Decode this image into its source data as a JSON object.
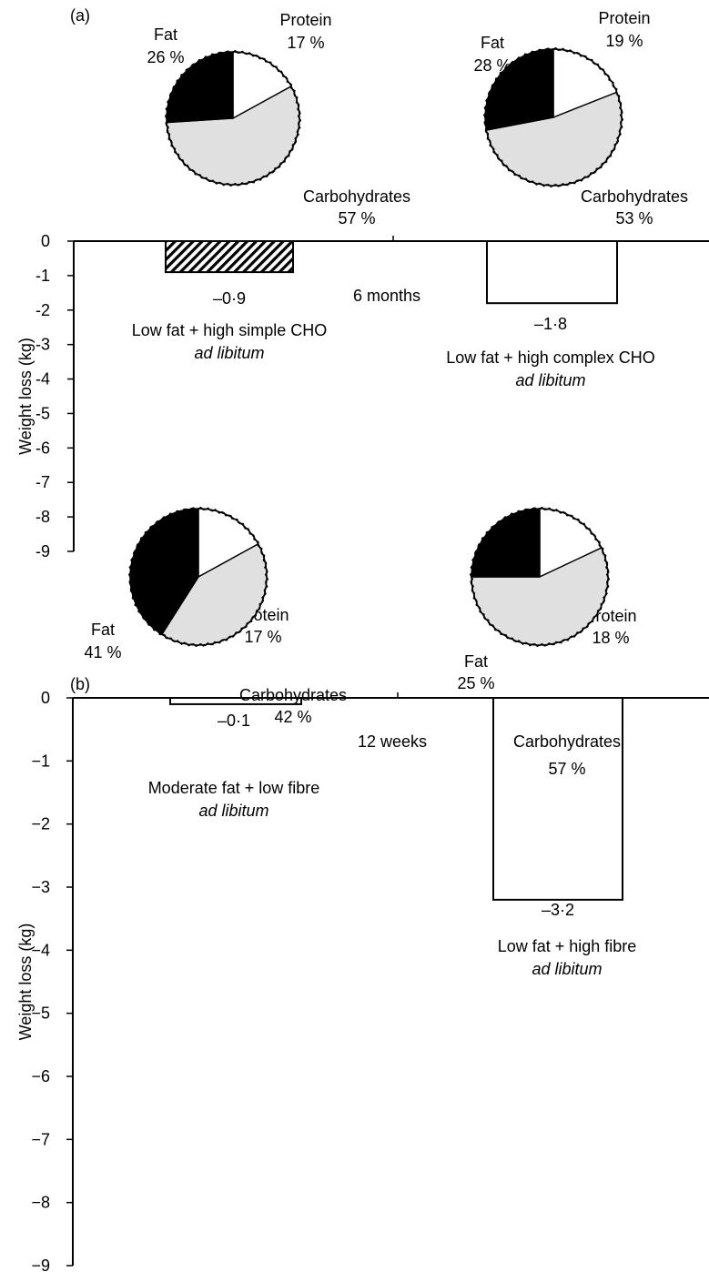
{
  "figure": {
    "colors": {
      "fat": "#000000",
      "protein": "#ffffff",
      "carbohydrates": "#e0e0e0",
      "bar_hatched_fill": "#000000",
      "bar_plain_fill": "#ffffff",
      "axis": "#000000"
    }
  },
  "chart_data": [
    {
      "panel": "(a)",
      "type": "bar",
      "duration_label": "6 months",
      "ylabel": "Weight loss (kg)",
      "ylim": [
        -9,
        0
      ],
      "yticks": [
        0,
        -1,
        -2,
        -3,
        -4,
        -5,
        -6,
        -7,
        -8,
        -9
      ],
      "ytick_labels": [
        "0",
        "-1",
        "-2",
        "-3",
        "-4",
        "-5",
        "-6",
        "-7",
        "-8",
        "-9"
      ],
      "bars": [
        {
          "value": -0.9,
          "value_label": "–0·9",
          "diet_label": "Low fat + high simple CHO",
          "diet_sublabel": "ad libitum",
          "fill": "hatched",
          "pie": {
            "slices": [
              {
                "name": "Protein",
                "percent": 17,
                "label": "17 %"
              },
              {
                "name": "Carbohydrates",
                "percent": 57,
                "label": "57 %"
              },
              {
                "name": "Fat",
                "percent": 26,
                "label": "26 %"
              }
            ]
          }
        },
        {
          "value": -1.8,
          "value_label": "–1·8",
          "diet_label": "Low fat + high complex CHO",
          "diet_sublabel": "ad libitum",
          "fill": "plain",
          "pie": {
            "slices": [
              {
                "name": "Protein",
                "percent": 19,
                "label": "19 %"
              },
              {
                "name": "Carbohydrates",
                "percent": 53,
                "label": "53 %"
              },
              {
                "name": "Fat",
                "percent": 28,
                "label": "28 %"
              }
            ]
          }
        }
      ]
    },
    {
      "panel": "(b)",
      "type": "bar",
      "duration_label": "12 weeks",
      "ylabel": "Weight loss (kg)",
      "ylim": [
        -9,
        0
      ],
      "yticks": [
        0,
        -1,
        -2,
        -3,
        -4,
        -5,
        -6,
        -7,
        -8,
        -9
      ],
      "ytick_labels": [
        "0",
        "−1",
        "−2",
        "−3",
        "−4",
        "−5",
        "−6",
        "−7",
        "−8",
        "−9"
      ],
      "bars": [
        {
          "value": -0.1,
          "value_label": "–0·1",
          "diet_label": "Moderate fat + low fibre",
          "diet_sublabel": "ad libitum",
          "fill": "plain",
          "pie": {
            "slices": [
              {
                "name": "Protein",
                "percent": 17,
                "label": "17 %"
              },
              {
                "name": "Carbohydrates",
                "percent": 42,
                "label": "42 %"
              },
              {
                "name": "Fat",
                "percent": 41,
                "label": "41 %"
              }
            ]
          }
        },
        {
          "value": -3.2,
          "value_label": "–3·2",
          "diet_label": "Low fat + high fibre",
          "diet_sublabel": "ad libitum",
          "fill": "plain",
          "pie": {
            "slices": [
              {
                "name": "Protein",
                "percent": 18,
                "label": "18 %"
              },
              {
                "name": "Carbohydrates",
                "percent": 57,
                "label": "57 %"
              },
              {
                "name": "Fat",
                "percent": 25,
                "label": "25 %"
              }
            ]
          }
        }
      ]
    }
  ]
}
